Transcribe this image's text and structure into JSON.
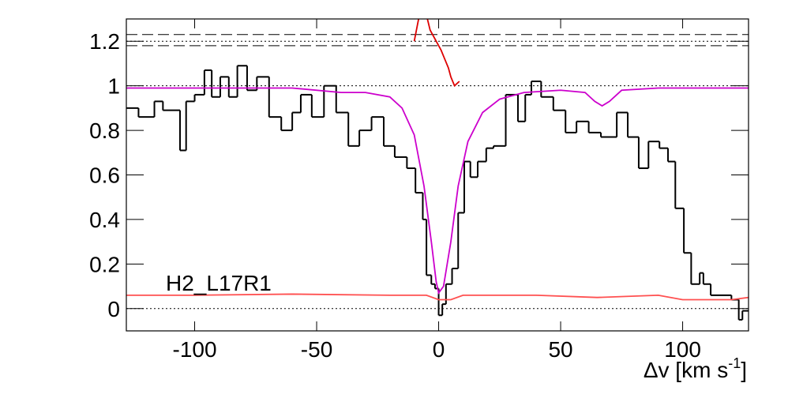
{
  "chart_data": {
    "type": "step",
    "label": "H2_L17R1",
    "xlabel": [
      "Δv [km s",
      "-1",
      "]"
    ],
    "xlim": [
      -128,
      127
    ],
    "ylim": [
      -0.1,
      1.3
    ],
    "xticks": [
      -100,
      -50,
      0,
      50,
      100
    ],
    "yticks": [
      0,
      0.2,
      0.4,
      0.6,
      0.8,
      1,
      1.2
    ],
    "histogram": {
      "color": "#000000",
      "bins": [
        -128,
        -123,
        -116.5,
        -113,
        -106,
        -103.5,
        -100,
        -96,
        -93,
        -89.5,
        -86,
        -82.5,
        -78.5,
        -74.5,
        -69.5,
        -64.5,
        -60,
        -56.5,
        -52,
        -47,
        -42,
        -37,
        -32.5,
        -27.5,
        -22.5,
        -18,
        -13,
        -9.5,
        -6.5,
        -5,
        -3,
        -1.5,
        0,
        1.5,
        3,
        5.5,
        8,
        10.5,
        13,
        16,
        19.5,
        22.5,
        27.5,
        32.5,
        35.5,
        38,
        42,
        47,
        52,
        56.5,
        61.5,
        66.5,
        73,
        77.5,
        82,
        86,
        90.5,
        94,
        97,
        100.5,
        103.5,
        107,
        108.5,
        111.5,
        120,
        123,
        124.5,
        127
      ],
      "values": [
        0.9,
        0.86,
        0.93,
        0.89,
        0.71,
        0.93,
        0.96,
        1.07,
        0.95,
        1.04,
        0.95,
        1.09,
        0.98,
        1.04,
        0.86,
        0.8,
        0.88,
        0.96,
        0.86,
        1.0,
        0.88,
        0.73,
        0.8,
        0.86,
        0.73,
        0.68,
        0.63,
        0.52,
        0.4,
        0.15,
        0.11,
        0.09,
        -0.03,
        0.02,
        0.11,
        0.18,
        0.43,
        0.66,
        0.59,
        0.66,
        0.72,
        0.73,
        0.96,
        0.84,
        0.96,
        1.02,
        0.95,
        0.89,
        0.79,
        0.84,
        0.79,
        0.77,
        0.88,
        0.77,
        0.63,
        0.75,
        0.72,
        0.66,
        0.45,
        0.25,
        0.11,
        0.16,
        0.11,
        0.06,
        0.04,
        -0.05,
        -0.01
      ]
    },
    "lines": [
      {
        "color": "#cc00cc",
        "x": [
          -128,
          -60,
          -40,
          -30,
          -20,
          -15,
          -10,
          -6,
          -3,
          -1,
          0,
          2,
          5,
          8,
          12,
          18,
          25,
          35,
          50,
          60,
          64,
          67,
          70,
          75,
          90,
          127
        ],
        "values": [
          0.99,
          0.99,
          0.97,
          0.97,
          0.95,
          0.9,
          0.78,
          0.55,
          0.3,
          0.12,
          0.07,
          0.1,
          0.3,
          0.55,
          0.75,
          0.88,
          0.94,
          0.97,
          0.98,
          0.97,
          0.93,
          0.91,
          0.93,
          0.98,
          0.99,
          0.99
        ]
      },
      {
        "color": "#ff5050",
        "x": [
          -128,
          -100,
          -60,
          -20,
          -5,
          0,
          5,
          10,
          40,
          65,
          90,
          100,
          110,
          120,
          127
        ],
        "values": [
          0.06,
          0.06,
          0.065,
          0.06,
          0.06,
          0.04,
          0.04,
          0.06,
          0.06,
          0.05,
          0.06,
          0.04,
          0.04,
          0.04,
          0.05
        ]
      },
      {
        "color": "#dd0000",
        "x": [
          -10,
          -7.5,
          -5.5,
          -3.5,
          -1,
          1,
          2.5,
          4,
          5,
          6.5,
          7.5,
          8.5
        ],
        "values": [
          1.2,
          1.34,
          1.34,
          1.25,
          1.2,
          1.16,
          1.12,
          1.08,
          1.04,
          1.0,
          1.01,
          1.02
        ]
      }
    ],
    "reference_lines": [
      {
        "value": 1.23,
        "style": "dashed"
      },
      {
        "value": 1.2,
        "style": "dotted"
      },
      {
        "value": 1.18,
        "style": "dashed"
      },
      {
        "value": 1,
        "style": "dotted"
      },
      {
        "value": 0,
        "style": "dotted"
      }
    ]
  }
}
